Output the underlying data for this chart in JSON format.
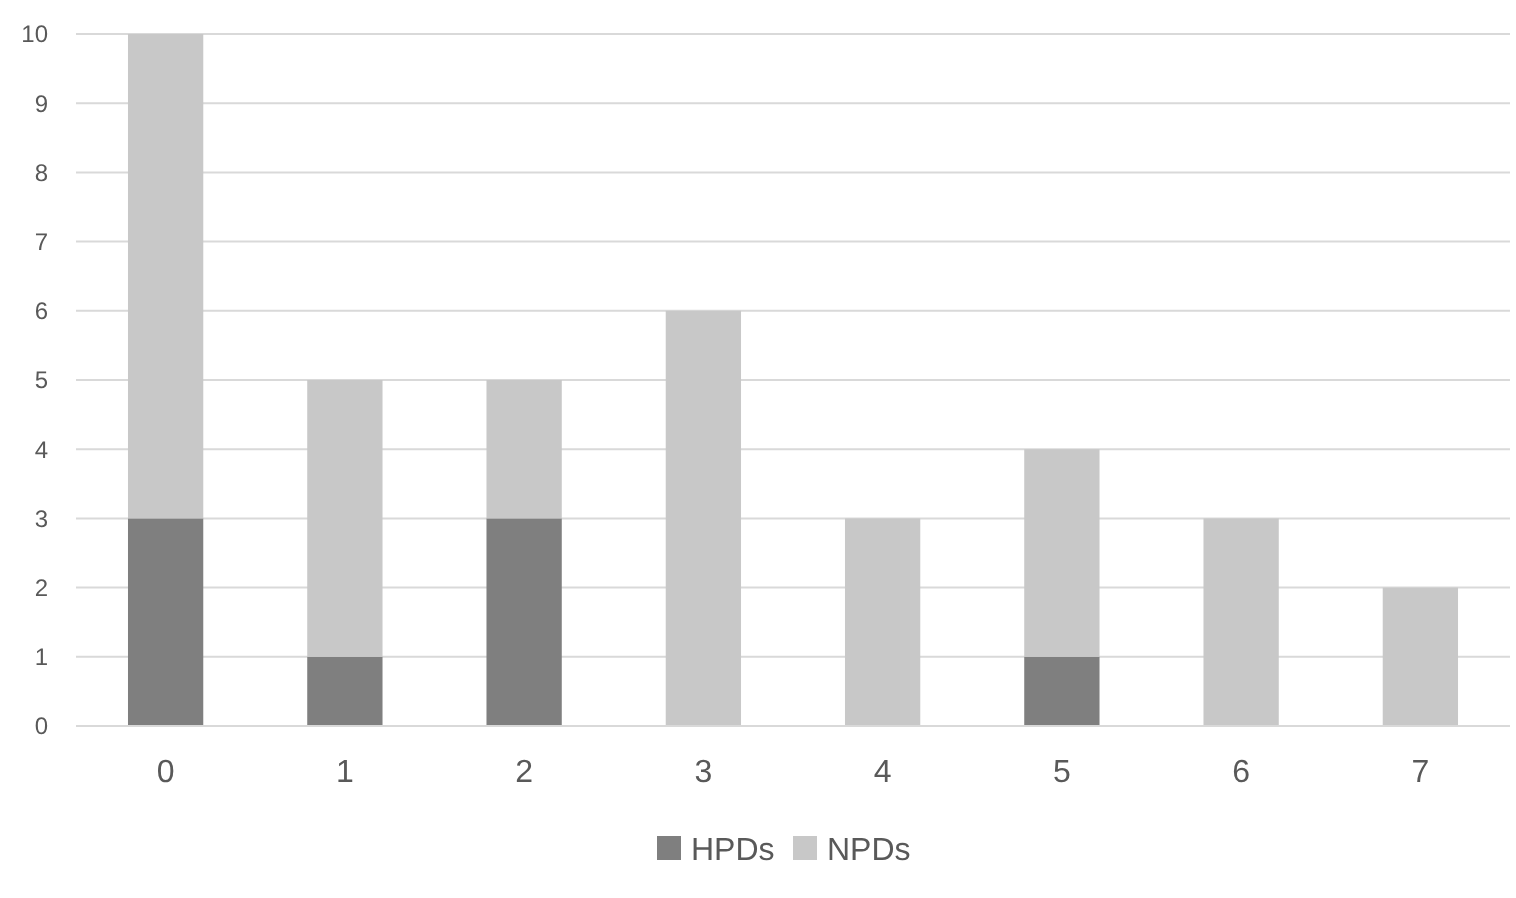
{
  "chart_data": {
    "type": "bar",
    "stacked": true,
    "categories": [
      "0",
      "1",
      "2",
      "3",
      "4",
      "5",
      "6",
      "7"
    ],
    "series": [
      {
        "name": "HPDs",
        "color": "#7f7f7f",
        "values": [
          3,
          1,
          3,
          0,
          0,
          1,
          0,
          0
        ]
      },
      {
        "name": "NPDs",
        "color": "#c8c8c8",
        "values": [
          7,
          4,
          2,
          6,
          3,
          3,
          3,
          2
        ]
      }
    ],
    "ylim": [
      0,
      10
    ],
    "yticks": [
      0,
      1,
      2,
      3,
      4,
      5,
      6,
      7,
      8,
      9,
      10
    ],
    "grid": "y",
    "legend": "bottom"
  }
}
